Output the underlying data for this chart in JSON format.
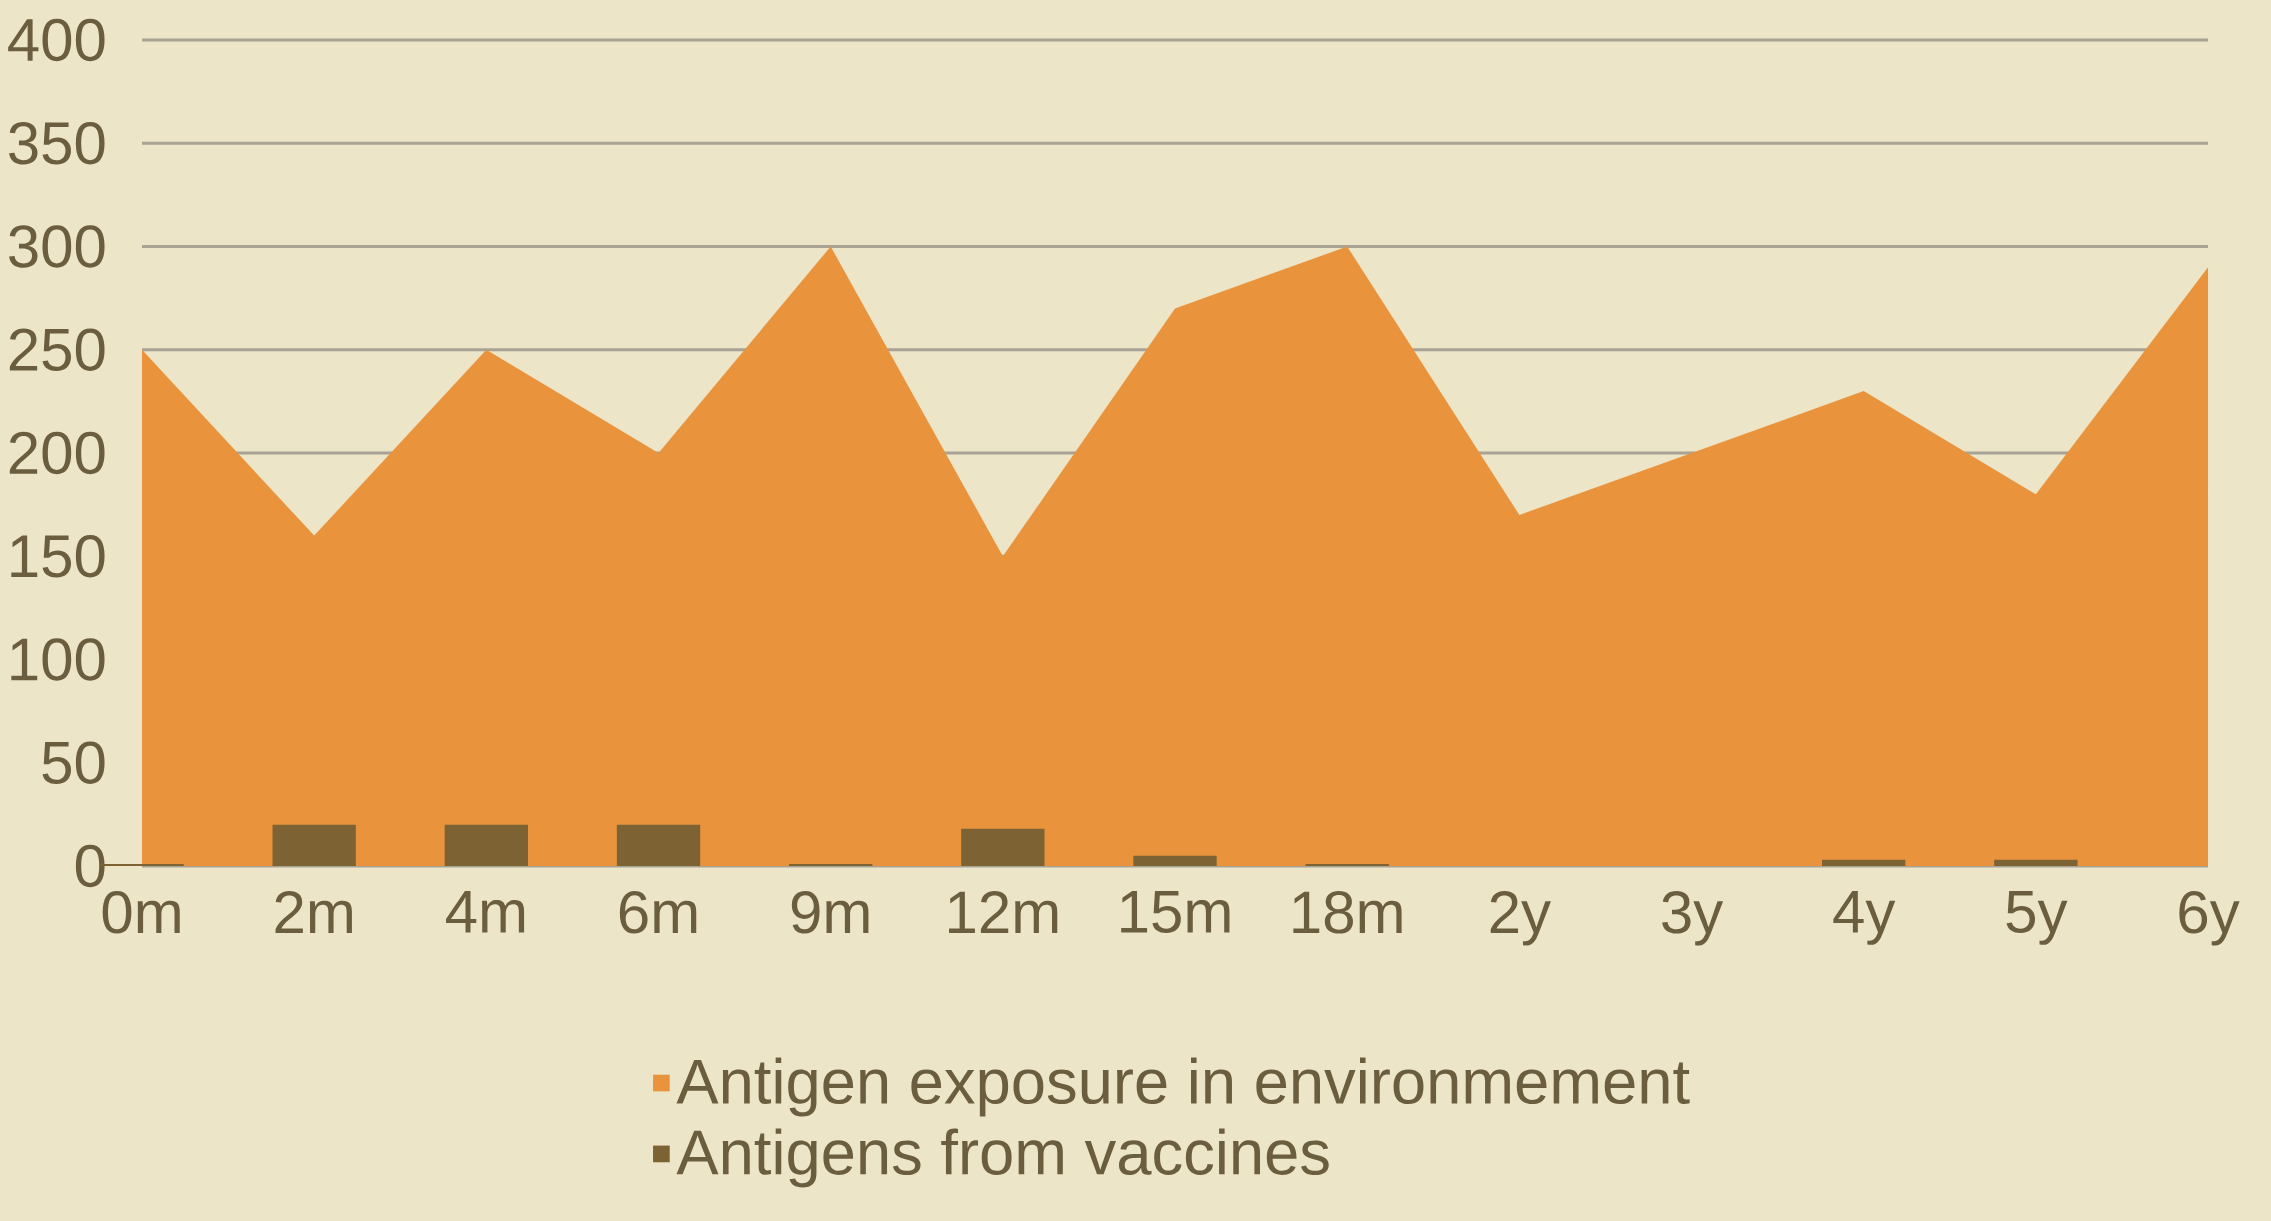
{
  "chart_data": {
    "type": "area",
    "categories": [
      "0m",
      "2m",
      "4m",
      "6m",
      "9m",
      "12m",
      "15m",
      "18m",
      "2y",
      "3y",
      "4y",
      "5y",
      "6y"
    ],
    "series": [
      {
        "name": "Antigen exposure in environmement",
        "color": "#e9943c",
        "values": [
          250,
          160,
          250,
          200,
          300,
          150,
          270,
          300,
          170,
          200,
          230,
          180,
          290
        ]
      },
      {
        "name": "Antigens from vaccines",
        "type": "bar",
        "color": "#7d6233",
        "values": [
          1,
          20,
          20,
          20,
          1,
          18,
          5,
          1,
          null,
          null,
          3,
          3,
          null
        ]
      }
    ],
    "ylim": [
      0,
      400
    ],
    "yticks": [
      0,
      50,
      100,
      150,
      200,
      250,
      300,
      350,
      400
    ],
    "grid": "y",
    "legend": "bottom"
  }
}
